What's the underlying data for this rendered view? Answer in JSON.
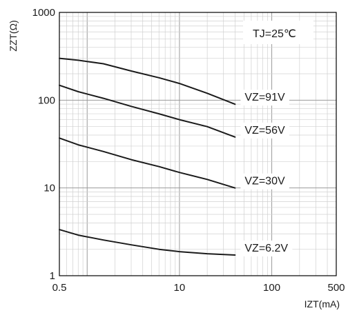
{
  "chart_data": {
    "type": "line",
    "title": "",
    "xlabel": "IZT(mA)",
    "ylabel": "ZZT(Ω)",
    "x_scale": "log",
    "y_scale": "log",
    "xlim": [
      0.5,
      500
    ],
    "ylim": [
      1,
      1000
    ],
    "x_ticks": [
      {
        "value": 0.5,
        "label": "0.5"
      },
      {
        "value": 10,
        "label": "10"
      },
      {
        "value": 100,
        "label": "100"
      },
      {
        "value": 500,
        "label": "500"
      }
    ],
    "y_ticks": [
      {
        "value": 1,
        "label": "1"
      },
      {
        "value": 10,
        "label": "10"
      },
      {
        "value": 100,
        "label": "100"
      },
      {
        "value": 1000,
        "label": "1000"
      }
    ],
    "grid": true,
    "annotation": "TJ=25℃",
    "series": [
      {
        "name": "VZ=91V",
        "x": [
          0.5,
          0.8,
          1.5,
          3,
          6,
          10,
          20,
          40
        ],
        "y": [
          300,
          285,
          260,
          215,
          180,
          155,
          120,
          90
        ]
      },
      {
        "name": "VZ=56V",
        "x": [
          0.5,
          0.8,
          1.5,
          3,
          6,
          10,
          20,
          40
        ],
        "y": [
          148,
          125,
          105,
          85,
          70,
          60,
          50,
          38
        ]
      },
      {
        "name": "VZ=30V",
        "x": [
          0.5,
          0.8,
          1.5,
          3,
          6,
          10,
          20,
          40
        ],
        "y": [
          37,
          31,
          26,
          21,
          17.5,
          15,
          12.5,
          10
        ]
      },
      {
        "name": "VZ=6.2V",
        "x": [
          0.5,
          0.8,
          1.5,
          3,
          6,
          10,
          20,
          40
        ],
        "y": [
          3.35,
          2.9,
          2.55,
          2.25,
          2.0,
          1.88,
          1.78,
          1.72
        ]
      }
    ],
    "colors": {
      "curve": "#1a1a1a",
      "grid": "#d0d0d0",
      "frame": "#000000",
      "label_bg": "#ffffff"
    }
  }
}
